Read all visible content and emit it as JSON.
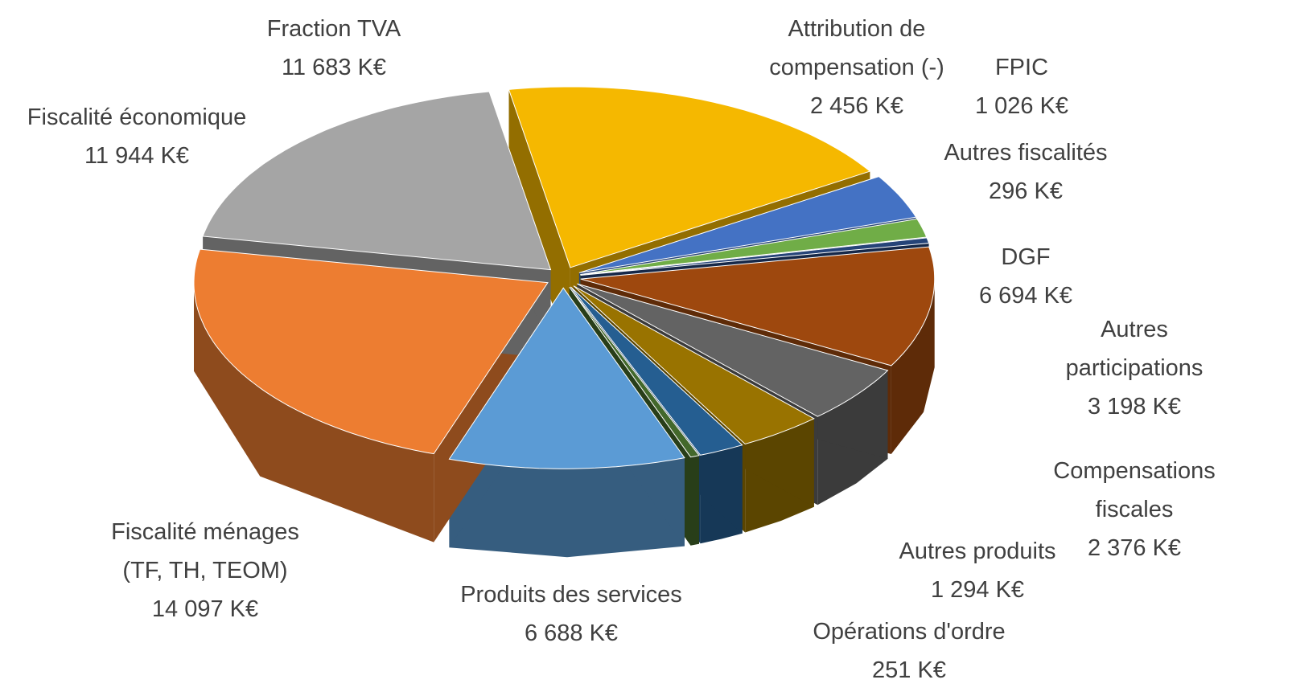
{
  "chart_data": {
    "type": "pie",
    "categories": [
      "Fraction TVA",
      "Attribution de\ncompensation (-)",
      "FPIC",
      "Autres fiscalités",
      "DGF",
      "Autres participations",
      "Compensations\nfiscales",
      "Autres produits",
      "Opérations d'ordre",
      "Produits des services",
      "Fiscalité ménages\n(TF, TH, TEOM)",
      "Fiscalité économique"
    ],
    "values": [
      11683,
      2456,
      1026,
      296,
      6694,
      3198,
      2376,
      1294,
      251,
      6688,
      14097,
      11944
    ],
    "value_labels": [
      "11 683 K€",
      "2 456 K€",
      "1 026 K€",
      "296 K€",
      "6 694 K€",
      "3 198 K€",
      "2 376 K€",
      "1 294 K€",
      "251 K€",
      "6 688 K€",
      "14 097 K€",
      "11 944 K€"
    ],
    "colors": [
      "#f5b800",
      "#4472c4",
      "#70ad47",
      "#264478",
      "#9e480e",
      "#636363",
      "#997300",
      "#255e91",
      "#43682b",
      "#5b9bd5",
      "#ed7d31",
      "#a5a5a5"
    ]
  }
}
